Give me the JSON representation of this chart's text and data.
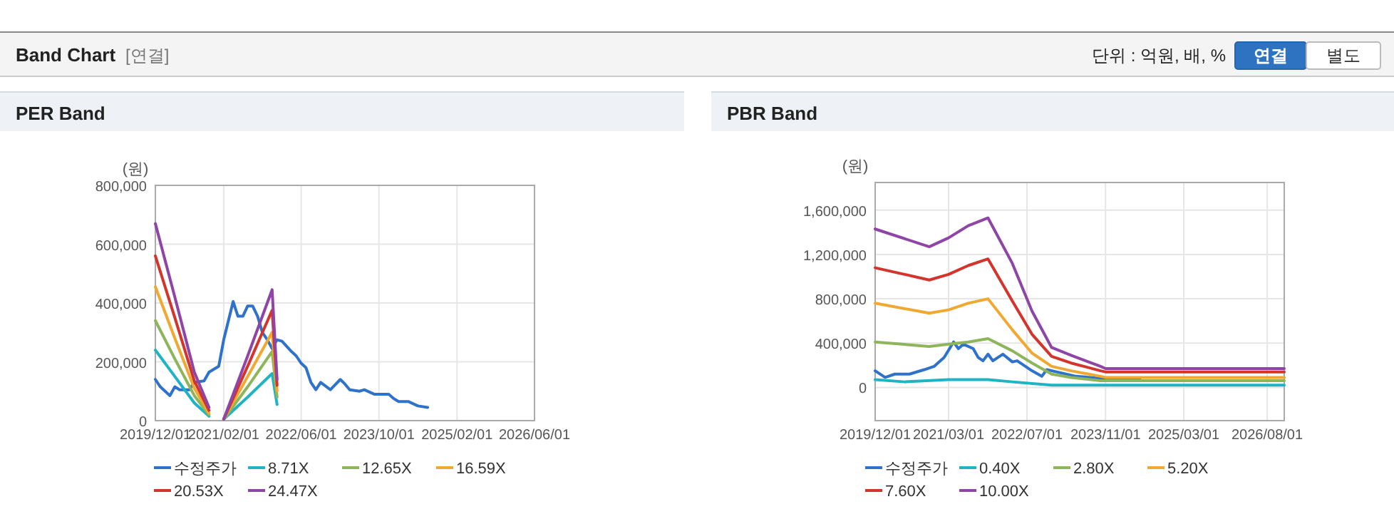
{
  "chart_data": [
    {
      "type": "other",
      "title": "Band Chart",
      "annotations": [
        "[연결]",
        "단위 : 억원, 배, %",
        "연결",
        "별도"
      ]
    },
    {
      "type": "line",
      "title": "PER Band",
      "ylabel": "(원)",
      "grid": true,
      "legend": "bottom",
      "line_style": "solid",
      "xlim": [
        "2019-12-01",
        "2026-06-01"
      ],
      "xticks": [
        {
          "value": "2019-12-01",
          "label": "2019/12/01"
        },
        {
          "value": "2021-02-01",
          "label": "2021/02/01"
        },
        {
          "value": "2022-06-01",
          "label": "2022/06/01"
        },
        {
          "value": "2023-10-01",
          "label": "2023/10/01"
        },
        {
          "value": "2025-02-01",
          "label": "2025/02/01"
        },
        {
          "value": "2026-06-01",
          "label": "2026/06/01"
        }
      ],
      "ylim": [
        0,
        800000
      ],
      "yticks": [
        {
          "value": 0,
          "label": "0"
        },
        {
          "value": 200000,
          "label": "200,000"
        },
        {
          "value": 400000,
          "label": "400,000"
        },
        {
          "value": 600000,
          "label": "600,000"
        },
        {
          "value": 800000,
          "label": "800,000"
        }
      ],
      "series": [
        {
          "name": "수정주가",
          "color": "#2f72cc",
          "x": [
            "2019-12-01",
            "2020-01-01",
            "2020-03-01",
            "2020-04-01",
            "2020-05-01",
            "2020-07-01",
            "2020-08-01",
            "2020-10-01",
            "2020-11-01",
            "2021-01-01",
            "2021-02-01",
            "2021-04-01",
            "2021-05-01",
            "2021-06-01",
            "2021-07-01",
            "2021-08-01",
            "2021-09-01",
            "2021-10-01",
            "2021-11-01",
            "2021-12-01",
            "2022-01-01",
            "2022-02-01",
            "2022-04-01",
            "2022-05-01",
            "2022-06-01",
            "2022-07-01",
            "2022-08-01",
            "2022-09-01",
            "2022-10-01",
            "2022-12-01",
            "2023-02-01",
            "2023-03-01",
            "2023-04-01",
            "2023-06-01",
            "2023-07-01",
            "2023-09-01",
            "2023-12-01",
            "2024-01-01",
            "2024-02-01",
            "2024-04-01",
            "2024-06-01",
            "2024-08-01"
          ],
          "values": [
            140000,
            115000,
            85000,
            115000,
            105000,
            105000,
            130000,
            135000,
            165000,
            185000,
            275000,
            405000,
            355000,
            355000,
            390000,
            390000,
            355000,
            300000,
            275000,
            245000,
            275000,
            270000,
            235000,
            220000,
            195000,
            180000,
            130000,
            105000,
            130000,
            105000,
            140000,
            125000,
            105000,
            100000,
            105000,
            90000,
            90000,
            75000,
            65000,
            65000,
            50000,
            45000
          ]
        },
        {
          "name": "8.71X",
          "color": "#1fb3c4",
          "x": [
            "2019-12-01",
            "2020-04-01",
            "2020-08-01",
            "2020-11-01",
            "2020-12-01",
            "2021-02-01",
            "2021-07-01",
            "2021-12-01",
            "2022-01-01"
          ],
          "values": [
            240000,
            150000,
            60000,
            15000,
            null,
            5000,
            80000,
            160000,
            55000
          ]
        },
        {
          "name": "12.65X",
          "color": "#8db55a",
          "x": [
            "2019-12-01",
            "2020-04-01",
            "2020-08-01",
            "2020-11-01",
            "2020-12-01",
            "2021-02-01",
            "2021-07-01",
            "2021-12-01",
            "2022-01-01"
          ],
          "values": [
            340000,
            210000,
            85000,
            20000,
            null,
            5000,
            115000,
            235000,
            80000
          ]
        },
        {
          "name": "16.59X",
          "color": "#f0a830",
          "x": [
            "2019-12-01",
            "2020-04-01",
            "2020-08-01",
            "2020-11-01",
            "2020-12-01",
            "2021-02-01",
            "2021-07-01",
            "2021-12-01",
            "2022-01-01"
          ],
          "values": [
            455000,
            280000,
            110000,
            25000,
            null,
            5000,
            150000,
            300000,
            100000
          ]
        },
        {
          "name": "20.53X",
          "color": "#d3342c",
          "x": [
            "2019-12-01",
            "2020-04-01",
            "2020-08-01",
            "2020-11-01",
            "2020-12-01",
            "2021-02-01",
            "2021-07-01",
            "2021-12-01",
            "2022-01-01"
          ],
          "values": [
            560000,
            350000,
            135000,
            35000,
            null,
            5000,
            185000,
            375000,
            120000
          ]
        },
        {
          "name": "24.47X",
          "color": "#8e45a6",
          "x": [
            "2019-12-01",
            "2020-04-01",
            "2020-08-01",
            "2020-11-01",
            "2020-12-01",
            "2021-02-01",
            "2021-07-01",
            "2021-12-01",
            "2022-01-01"
          ],
          "values": [
            670000,
            420000,
            165000,
            45000,
            null,
            5000,
            220000,
            445000,
            140000
          ]
        }
      ]
    },
    {
      "type": "line",
      "title": "PBR Band",
      "ylabel": "(원)",
      "grid": true,
      "legend": "bottom",
      "line_style": "solid",
      "xlim": [
        "2019-12-01",
        "2026-11-15"
      ],
      "xticks": [
        {
          "value": "2019-12-01",
          "label": "2019/12/01"
        },
        {
          "value": "2021-03-01",
          "label": "2021/03/01"
        },
        {
          "value": "2022-07-01",
          "label": "2022/07/01"
        },
        {
          "value": "2023-11-01",
          "label": "2023/11/01"
        },
        {
          "value": "2025-03-01",
          "label": "2025/03/01"
        },
        {
          "value": "2026-08-01",
          "label": "2026/08/01"
        }
      ],
      "ylim": [
        -300000,
        1850000
      ],
      "yticks": [
        {
          "value": 0,
          "label": "0"
        },
        {
          "value": 400000,
          "label": "400,000"
        },
        {
          "value": 800000,
          "label": "800,000"
        },
        {
          "value": 1200000,
          "label": "1,200,000"
        },
        {
          "value": 1600000,
          "label": "1,600,000"
        }
      ],
      "series": [
        {
          "name": "수정주가",
          "color": "#2f72cc",
          "x": [
            "2019-12-01",
            "2020-02-01",
            "2020-04-01",
            "2020-07-01",
            "2020-10-01",
            "2020-12-01",
            "2021-02-01",
            "2021-04-01",
            "2021-05-01",
            "2021-06-01",
            "2021-08-01",
            "2021-09-01",
            "2021-10-01",
            "2021-11-01",
            "2021-12-01",
            "2022-02-01",
            "2022-04-01",
            "2022-05-01",
            "2022-07-01",
            "2022-08-01",
            "2022-10-01",
            "2022-11-01",
            "2023-01-01",
            "2023-03-01",
            "2023-05-01",
            "2023-08-01",
            "2023-12-01",
            "2024-06-01"
          ],
          "values": [
            150000,
            90000,
            120000,
            120000,
            160000,
            190000,
            270000,
            410000,
            350000,
            390000,
            350000,
            270000,
            240000,
            300000,
            240000,
            300000,
            230000,
            240000,
            180000,
            150000,
            100000,
            160000,
            140000,
            120000,
            100000,
            90000,
            70000,
            70000
          ]
        },
        {
          "name": "0.40X",
          "color": "#1fb3c4",
          "x": [
            "2019-12-01",
            "2020-06-01",
            "2021-03-01",
            "2021-11-01",
            "2022-04-01",
            "2022-12-01",
            "2023-10-01",
            "2026-11-15"
          ],
          "values": [
            70000,
            50000,
            70000,
            70000,
            50000,
            20000,
            20000,
            20000
          ]
        },
        {
          "name": "2.80X",
          "color": "#8db55a",
          "x": [
            "2019-12-01",
            "2020-11-01",
            "2021-03-01",
            "2021-07-01",
            "2021-11-01",
            "2022-04-01",
            "2022-08-01",
            "2022-12-01",
            "2023-04-01",
            "2023-10-01",
            "2026-11-15"
          ],
          "values": [
            410000,
            370000,
            390000,
            410000,
            440000,
            330000,
            220000,
            120000,
            90000,
            60000,
            60000
          ]
        },
        {
          "name": "5.20X",
          "color": "#f0a830",
          "x": [
            "2019-12-01",
            "2020-11-01",
            "2021-03-01",
            "2021-07-01",
            "2021-11-01",
            "2022-04-01",
            "2022-08-01",
            "2022-12-01",
            "2023-04-01",
            "2023-10-01",
            "2023-11-01",
            "2026-11-15"
          ],
          "values": [
            760000,
            670000,
            700000,
            760000,
            800000,
            520000,
            310000,
            190000,
            150000,
            100000,
            90000,
            90000
          ]
        },
        {
          "name": "7.60X",
          "color": "#d3342c",
          "x": [
            "2019-12-01",
            "2020-11-01",
            "2021-03-01",
            "2021-07-01",
            "2021-11-01",
            "2022-04-01",
            "2022-08-01",
            "2022-12-01",
            "2023-04-01",
            "2023-10-01",
            "2023-11-01",
            "2026-11-15"
          ],
          "values": [
            1080000,
            970000,
            1020000,
            1100000,
            1160000,
            780000,
            480000,
            280000,
            220000,
            150000,
            140000,
            140000
          ]
        },
        {
          "name": "10.00X",
          "color": "#8e45a6",
          "x": [
            "2019-12-01",
            "2020-11-01",
            "2021-03-01",
            "2021-07-01",
            "2021-11-01",
            "2022-04-01",
            "2022-08-01",
            "2022-12-01",
            "2023-04-01",
            "2023-10-01",
            "2023-11-01",
            "2026-11-15"
          ],
          "values": [
            1430000,
            1270000,
            1350000,
            1460000,
            1530000,
            1120000,
            690000,
            360000,
            290000,
            190000,
            170000,
            170000
          ]
        }
      ]
    }
  ]
}
